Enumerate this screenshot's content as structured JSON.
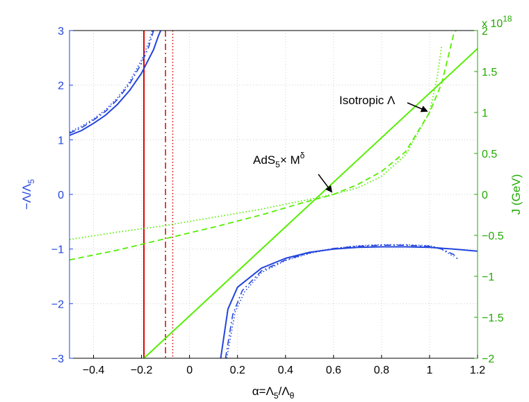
{
  "chart_data": {
    "type": "line",
    "xlabel": {
      "base": "α=Λ",
      "sub1": "5",
      "mid": "/Λ",
      "sub2": "θ"
    },
    "ylabel_left": {
      "base": "−Λ/Λ",
      "sub": "5"
    },
    "ylabel_right": "J (GeV)",
    "right_axis_multiplier": {
      "base": "x 10",
      "exp": "18"
    },
    "xlim": [
      -0.5,
      1.2
    ],
    "ylim_left": [
      -3,
      3
    ],
    "ylim_right": [
      -2,
      2
    ],
    "x_ticks": [
      -0.4,
      -0.2,
      0,
      0.2,
      0.4,
      0.6,
      0.8,
      1,
      1.2
    ],
    "x_tick_labels": [
      "−0.4",
      "−0.2",
      "0",
      "0.2",
      "0.4",
      "0.6",
      "0.8",
      "1",
      "1.2"
    ],
    "left_ticks": [
      -3,
      -2,
      -1,
      0,
      1,
      2,
      3
    ],
    "left_tick_labels": [
      "−3",
      "−2",
      "−1",
      "0",
      "1",
      "2",
      "3"
    ],
    "right_ticks": [
      -2,
      -1.5,
      -1,
      -0.5,
      0,
      0.5,
      1,
      1.5,
      2
    ],
    "right_tick_labels": [
      "−2",
      "−1.5",
      "−1",
      "−0.5",
      "0",
      "0.5",
      "1",
      "1.5",
      "2"
    ],
    "grid": true,
    "colors": {
      "left_axis": "#2244dd",
      "right_axis": "#22aa00",
      "blue": "#2244dd",
      "green": "#55ee00",
      "red": "#dd0000"
    },
    "vertical_lines": [
      {
        "x": -0.19,
        "style": "solid"
      },
      {
        "x": -0.1,
        "style": "dashdot"
      },
      {
        "x": -0.07,
        "style": "dotted"
      }
    ],
    "blue_curves_left_axis": [
      {
        "style": "solid",
        "points": [
          [
            -0.5,
            1.08
          ],
          [
            -0.45,
            1.17
          ],
          [
            -0.4,
            1.3
          ],
          [
            -0.35,
            1.45
          ],
          [
            -0.3,
            1.65
          ],
          [
            -0.25,
            1.9
          ],
          [
            -0.2,
            2.22
          ],
          [
            -0.15,
            2.65
          ],
          [
            -0.13,
            2.9
          ],
          [
            -0.12,
            3.0
          ]
        ]
      },
      {
        "style": "dashdot",
        "points": [
          [
            -0.5,
            1.12
          ],
          [
            -0.45,
            1.22
          ],
          [
            -0.4,
            1.36
          ],
          [
            -0.35,
            1.52
          ],
          [
            -0.3,
            1.74
          ],
          [
            -0.25,
            2.02
          ],
          [
            -0.2,
            2.4
          ],
          [
            -0.17,
            2.7
          ],
          [
            -0.15,
            3.0
          ]
        ]
      },
      {
        "style": "dotted",
        "points": [
          [
            -0.5,
            1.14
          ],
          [
            -0.45,
            1.25
          ],
          [
            -0.4,
            1.38
          ],
          [
            -0.35,
            1.55
          ],
          [
            -0.3,
            1.77
          ],
          [
            -0.25,
            2.06
          ],
          [
            -0.2,
            2.46
          ],
          [
            -0.17,
            2.78
          ],
          [
            -0.155,
            3.0
          ]
        ]
      },
      {
        "style": "solid",
        "points": [
          [
            0.13,
            -3.0
          ],
          [
            0.16,
            -2.1
          ],
          [
            0.2,
            -1.7
          ],
          [
            0.3,
            -1.35
          ],
          [
            0.4,
            -1.17
          ],
          [
            0.5,
            -1.06
          ],
          [
            0.6,
            -1.0
          ],
          [
            0.7,
            -0.97
          ],
          [
            0.8,
            -0.96
          ],
          [
            0.9,
            -0.96
          ],
          [
            1.0,
            -0.97
          ],
          [
            1.1,
            -1.0
          ],
          [
            1.2,
            -1.04
          ]
        ]
      },
      {
        "style": "dashdot",
        "points": [
          [
            0.15,
            -3.0
          ],
          [
            0.18,
            -2.2
          ],
          [
            0.22,
            -1.76
          ],
          [
            0.3,
            -1.4
          ],
          [
            0.4,
            -1.2
          ],
          [
            0.5,
            -1.07
          ],
          [
            0.6,
            -0.99
          ],
          [
            0.7,
            -0.95
          ],
          [
            0.8,
            -0.93
          ],
          [
            0.9,
            -0.93
          ],
          [
            1.0,
            -0.95
          ],
          [
            1.05,
            -1.0
          ],
          [
            1.1,
            -1.1
          ],
          [
            1.12,
            -1.2
          ]
        ]
      },
      {
        "style": "dotted",
        "points": [
          [
            0.155,
            -3.0
          ],
          [
            0.19,
            -2.15
          ],
          [
            0.23,
            -1.78
          ],
          [
            0.3,
            -1.43
          ],
          [
            0.4,
            -1.21
          ],
          [
            0.5,
            -1.08
          ],
          [
            0.6,
            -0.99
          ],
          [
            0.7,
            -0.94
          ],
          [
            0.8,
            -0.92
          ],
          [
            0.9,
            -0.92
          ],
          [
            1.0,
            -0.94
          ],
          [
            1.04,
            -0.98
          ],
          [
            1.08,
            -1.08
          ],
          [
            1.1,
            -1.14
          ]
        ]
      }
    ],
    "green_curves_right_axis": [
      {
        "style": "solid",
        "points": [
          [
            -0.19,
            -2.0
          ],
          [
            1.2,
            1.78
          ]
        ]
      },
      {
        "style": "dashed",
        "points": [
          [
            -0.5,
            -0.8
          ],
          [
            -0.3,
            -0.68
          ],
          [
            -0.1,
            -0.54
          ],
          [
            0.1,
            -0.4
          ],
          [
            0.3,
            -0.25
          ],
          [
            0.45,
            -0.12
          ],
          [
            0.6,
            0.0
          ],
          [
            0.7,
            0.12
          ],
          [
            0.8,
            0.28
          ],
          [
            0.9,
            0.52
          ],
          [
            1.0,
            1.0
          ],
          [
            1.05,
            1.35
          ],
          [
            1.1,
            1.95
          ],
          [
            1.11,
            2.0
          ]
        ]
      },
      {
        "style": "dotted",
        "points": [
          [
            -0.5,
            -0.55
          ],
          [
            -0.3,
            -0.46
          ],
          [
            -0.1,
            -0.38
          ],
          [
            0.1,
            -0.28
          ],
          [
            0.3,
            -0.18
          ],
          [
            0.45,
            -0.09
          ],
          [
            0.6,
            0.0
          ],
          [
            0.7,
            0.08
          ],
          [
            0.8,
            0.22
          ],
          [
            0.9,
            0.48
          ],
          [
            1.0,
            1.0
          ],
          [
            1.03,
            1.4
          ],
          [
            1.05,
            1.8
          ]
        ]
      }
    ],
    "annotations": [
      {
        "text": "Isotropic Λ",
        "target": [
          1.0,
          1.0
        ]
      },
      {
        "text": {
          "base": "AdS",
          "sub": "5",
          "mid": "× M",
          "sup": "δ"
        },
        "target": [
          0.6,
          0.0
        ]
      }
    ]
  }
}
